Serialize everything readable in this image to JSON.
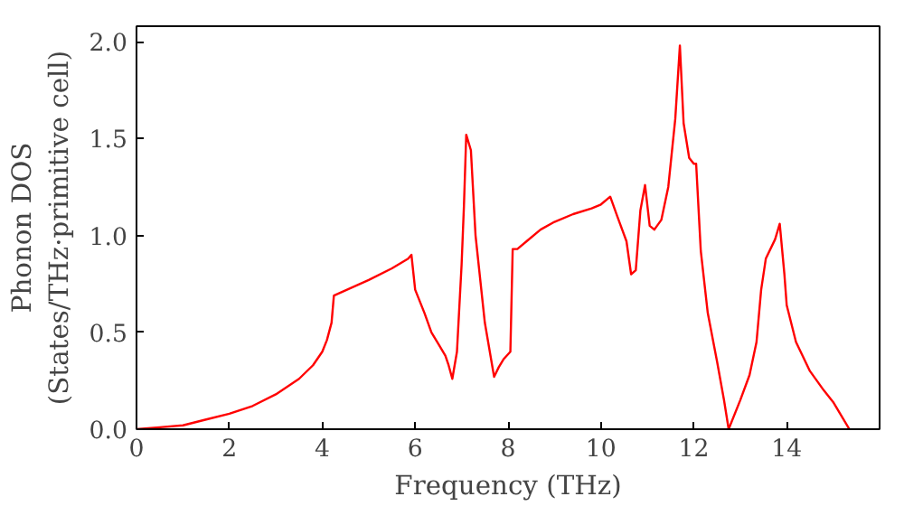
{
  "chart_data": {
    "type": "line",
    "xlabel": "Frequency (THz)",
    "ylabel": "Phonon DOS\n(States/THz·primitive cell)",
    "xlim": [
      0,
      16
    ],
    "ylim": [
      0,
      2.08
    ],
    "xticks": [
      0,
      2,
      4,
      6,
      8,
      10,
      12,
      14
    ],
    "yticks": [
      {
        "value": 0,
        "label": "0.0"
      },
      {
        "value": 0.5,
        "label": "0.5"
      },
      {
        "value": 1,
        "label": "1.0"
      },
      {
        "value": 1.5,
        "label": "1.5"
      },
      {
        "value": 2,
        "label": "2.0"
      }
    ],
    "grid": false,
    "series": [
      {
        "color": "#ff0000",
        "x": [
          0,
          0.5,
          1,
          1.5,
          2,
          2.5,
          3,
          3.5,
          3.8,
          4.0,
          4.1,
          4.2,
          4.25,
          5,
          5.5,
          5.85,
          5.92,
          6.0,
          6.2,
          6.35,
          6.5,
          6.65,
          6.72,
          6.8,
          6.9,
          7.0,
          7.05,
          7.1,
          7.2,
          7.3,
          7.5,
          7.7,
          7.8,
          7.9,
          8.05,
          8.1,
          8.2,
          8.4,
          8.7,
          9.0,
          9.4,
          9.8,
          10.0,
          10.2,
          10.35,
          10.55,
          10.65,
          10.75,
          10.85,
          10.95,
          11.05,
          11.15,
          11.3,
          11.45,
          11.6,
          11.7,
          11.78,
          11.9,
          12.0,
          12.05,
          12.15,
          12.3,
          12.5,
          12.65,
          12.75,
          13.0,
          13.2,
          13.35,
          13.45,
          13.55,
          13.75,
          13.85,
          13.95,
          14.0,
          14.2,
          14.5,
          14.8,
          15.0,
          15.2,
          15.35
        ],
        "values": [
          0,
          0.01,
          0.02,
          0.05,
          0.08,
          0.12,
          0.18,
          0.26,
          0.33,
          0.4,
          0.46,
          0.55,
          0.69,
          0.77,
          0.83,
          0.88,
          0.9,
          0.72,
          0.6,
          0.5,
          0.44,
          0.38,
          0.33,
          0.26,
          0.4,
          0.85,
          1.15,
          1.52,
          1.44,
          1.0,
          0.55,
          0.27,
          0.32,
          0.36,
          0.4,
          0.93,
          0.93,
          0.97,
          1.03,
          1.07,
          1.11,
          1.14,
          1.16,
          1.2,
          1.1,
          0.97,
          0.8,
          0.82,
          1.13,
          1.26,
          1.05,
          1.03,
          1.08,
          1.25,
          1.6,
          1.98,
          1.58,
          1.4,
          1.37,
          1.37,
          0.92,
          0.6,
          0.35,
          0.15,
          0.0,
          0.15,
          0.28,
          0.45,
          0.72,
          0.88,
          0.98,
          1.06,
          0.8,
          0.64,
          0.45,
          0.3,
          0.2,
          0.14,
          0.06,
          0.0
        ]
      }
    ]
  }
}
